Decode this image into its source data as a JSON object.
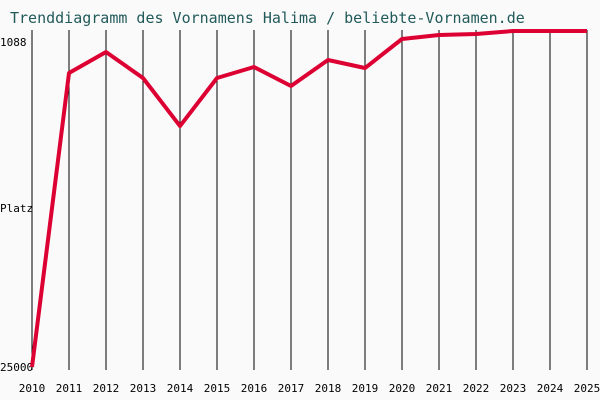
{
  "chart_data": {
    "type": "line",
    "title": "Trenddiagramm des Vornamens Halima / beliebte-Vornamen.de",
    "xlabel": "",
    "ylabel": "Platz",
    "ylim": [
      25000,
      1088
    ],
    "y_tick_labels": [
      "1088",
      "25000"
    ],
    "x": [
      "2010",
      "2011",
      "2012",
      "2013",
      "2014",
      "2015",
      "2016",
      "2017",
      "2018",
      "2019",
      "2020",
      "2021",
      "2022",
      "2023",
      "2024",
      "2025"
    ],
    "series": [
      {
        "name": "Halima",
        "color": "#dd0033",
        "values": [
          25000,
          4078,
          2583,
          4434,
          7852,
          4434,
          3651,
          5004,
          3153,
          3722,
          1658,
          1373,
          1302,
          1088,
          1088,
          1088
        ]
      }
    ],
    "grid": "vertical"
  }
}
